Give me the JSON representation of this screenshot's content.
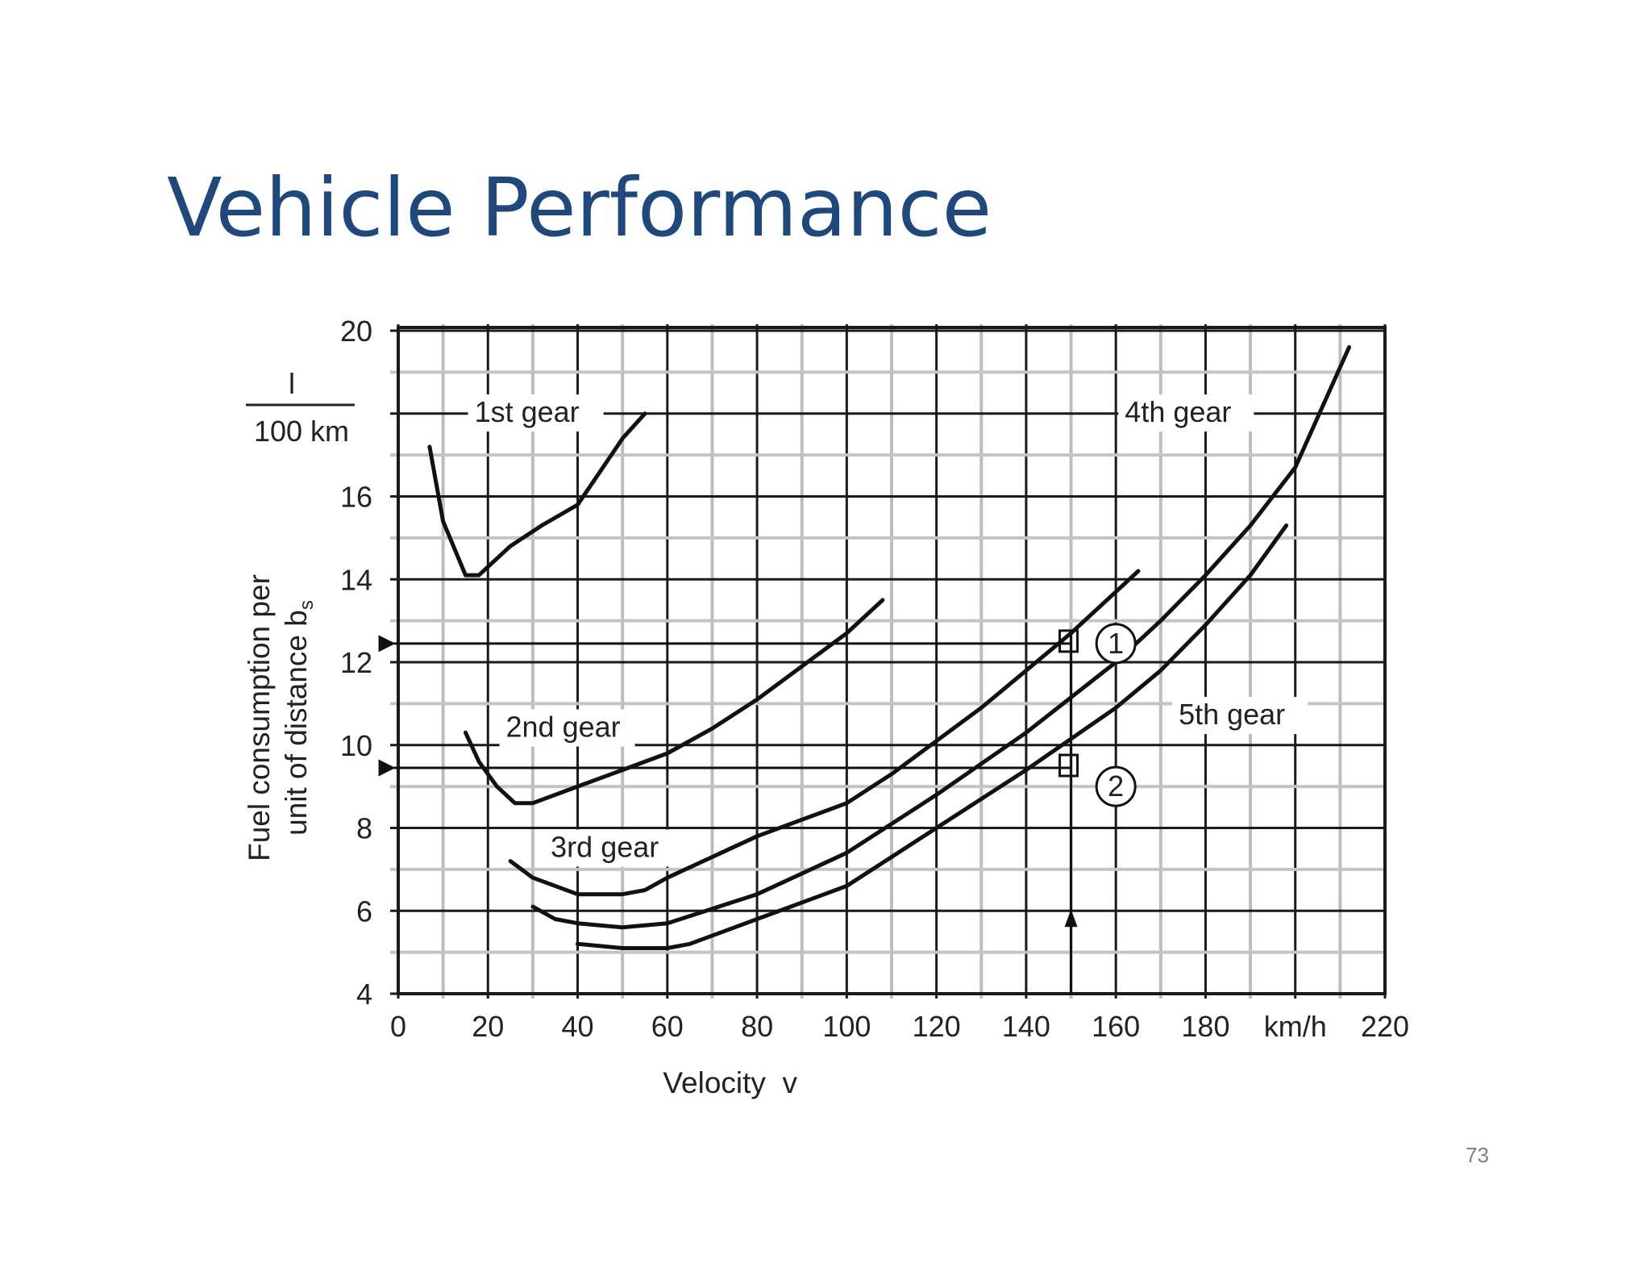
{
  "slide": {
    "title": "Vehicle Performance",
    "page_number": "73"
  },
  "chart_data": {
    "type": "line",
    "xlabel": "Velocity  v",
    "ylabel_line1": "Fuel consumption per",
    "ylabel_line2": "unit of distance b",
    "ylabel_subscript": "s",
    "yunit_numerator": "l",
    "yunit_denominator": "100 km",
    "xunit": "km/h",
    "xlim": [
      0,
      220
    ],
    "ylim": [
      4,
      20
    ],
    "x_ticks": [
      "0",
      "20",
      "40",
      "60",
      "80",
      "100",
      "120",
      "140",
      "160",
      "180",
      "km/h",
      "220"
    ],
    "y_ticks": [
      "4",
      "6",
      "8",
      "10",
      "12",
      "14",
      "16",
      "",
      "20"
    ],
    "grid": true,
    "series": [
      {
        "name": "1st gear",
        "x": [
          7,
          10,
          15,
          18,
          25,
          32,
          40,
          45,
          50,
          55
        ],
        "y": [
          17.2,
          15.4,
          14.1,
          14.1,
          14.8,
          15.3,
          15.8,
          16.6,
          17.4,
          18.0
        ]
      },
      {
        "name": "2nd gear",
        "x": [
          15,
          18,
          22,
          26,
          30,
          40,
          50,
          60,
          70,
          80,
          90,
          100,
          108
        ],
        "y": [
          10.3,
          9.6,
          9.0,
          8.6,
          8.6,
          9.0,
          9.4,
          9.8,
          10.4,
          11.1,
          11.9,
          12.7,
          13.5
        ]
      },
      {
        "name": "3rd gear",
        "x": [
          25,
          30,
          40,
          50,
          55,
          60,
          80,
          100,
          110,
          120,
          130,
          140,
          150,
          160,
          165
        ],
        "y": [
          7.2,
          6.8,
          6.4,
          6.4,
          6.5,
          6.8,
          7.8,
          8.6,
          9.3,
          10.1,
          10.9,
          11.8,
          12.7,
          13.7,
          14.2
        ]
      },
      {
        "name": "4th gear",
        "x": [
          30,
          35,
          40,
          50,
          60,
          80,
          100,
          110,
          120,
          140,
          160,
          170,
          180,
          190,
          200,
          212
        ],
        "y": [
          6.1,
          5.8,
          5.7,
          5.6,
          5.7,
          6.4,
          7.4,
          8.1,
          8.8,
          10.3,
          12.0,
          13.0,
          14.1,
          15.3,
          16.7,
          19.6
        ]
      },
      {
        "name": "5th gear",
        "x": [
          40,
          50,
          60,
          65,
          80,
          100,
          110,
          120,
          140,
          160,
          170,
          180,
          190,
          198
        ],
        "y": [
          5.2,
          5.1,
          5.1,
          5.2,
          5.8,
          6.6,
          7.3,
          8.0,
          9.4,
          10.9,
          11.8,
          12.9,
          14.1,
          15.3
        ]
      }
    ],
    "annotations": {
      "marker_1": "1",
      "marker_2": "2"
    }
  }
}
